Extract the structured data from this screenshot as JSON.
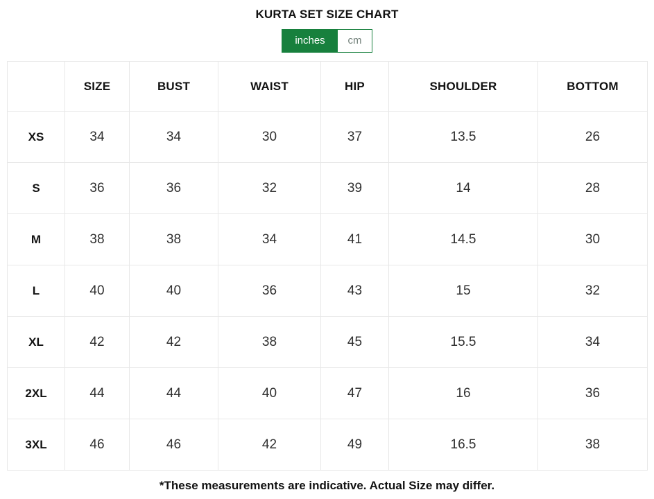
{
  "title": "KURTA SET SIZE CHART",
  "unit_toggle": {
    "options": [
      {
        "label": "inches",
        "active": true
      },
      {
        "label": "cm",
        "active": false
      }
    ]
  },
  "colors": {
    "accent_green": "#17803d",
    "grid_border": "#e8e8e8",
    "inactive_unit_text": "#72807a"
  },
  "chart_data": {
    "type": "table",
    "columns": [
      "",
      "SIZE",
      "BUST",
      "WAIST",
      "HIP",
      "SHOULDER",
      "BOTTOM"
    ],
    "rows": [
      {
        "size": "XS",
        "values": [
          "34",
          "34",
          "30",
          "37",
          "13.5",
          "26"
        ]
      },
      {
        "size": "S",
        "values": [
          "36",
          "36",
          "32",
          "39",
          "14",
          "28"
        ]
      },
      {
        "size": "M",
        "values": [
          "38",
          "38",
          "34",
          "41",
          "14.5",
          "30"
        ]
      },
      {
        "size": "L",
        "values": [
          "40",
          "40",
          "36",
          "43",
          "15",
          "32"
        ]
      },
      {
        "size": "XL",
        "values": [
          "42",
          "42",
          "38",
          "45",
          "15.5",
          "34"
        ]
      },
      {
        "size": "2XL",
        "values": [
          "44",
          "44",
          "40",
          "47",
          "16",
          "36"
        ]
      },
      {
        "size": "3XL",
        "values": [
          "46",
          "46",
          "42",
          "49",
          "16.5",
          "38"
        ]
      }
    ]
  },
  "footnote": "*These measurements are indicative. Actual Size may differ."
}
